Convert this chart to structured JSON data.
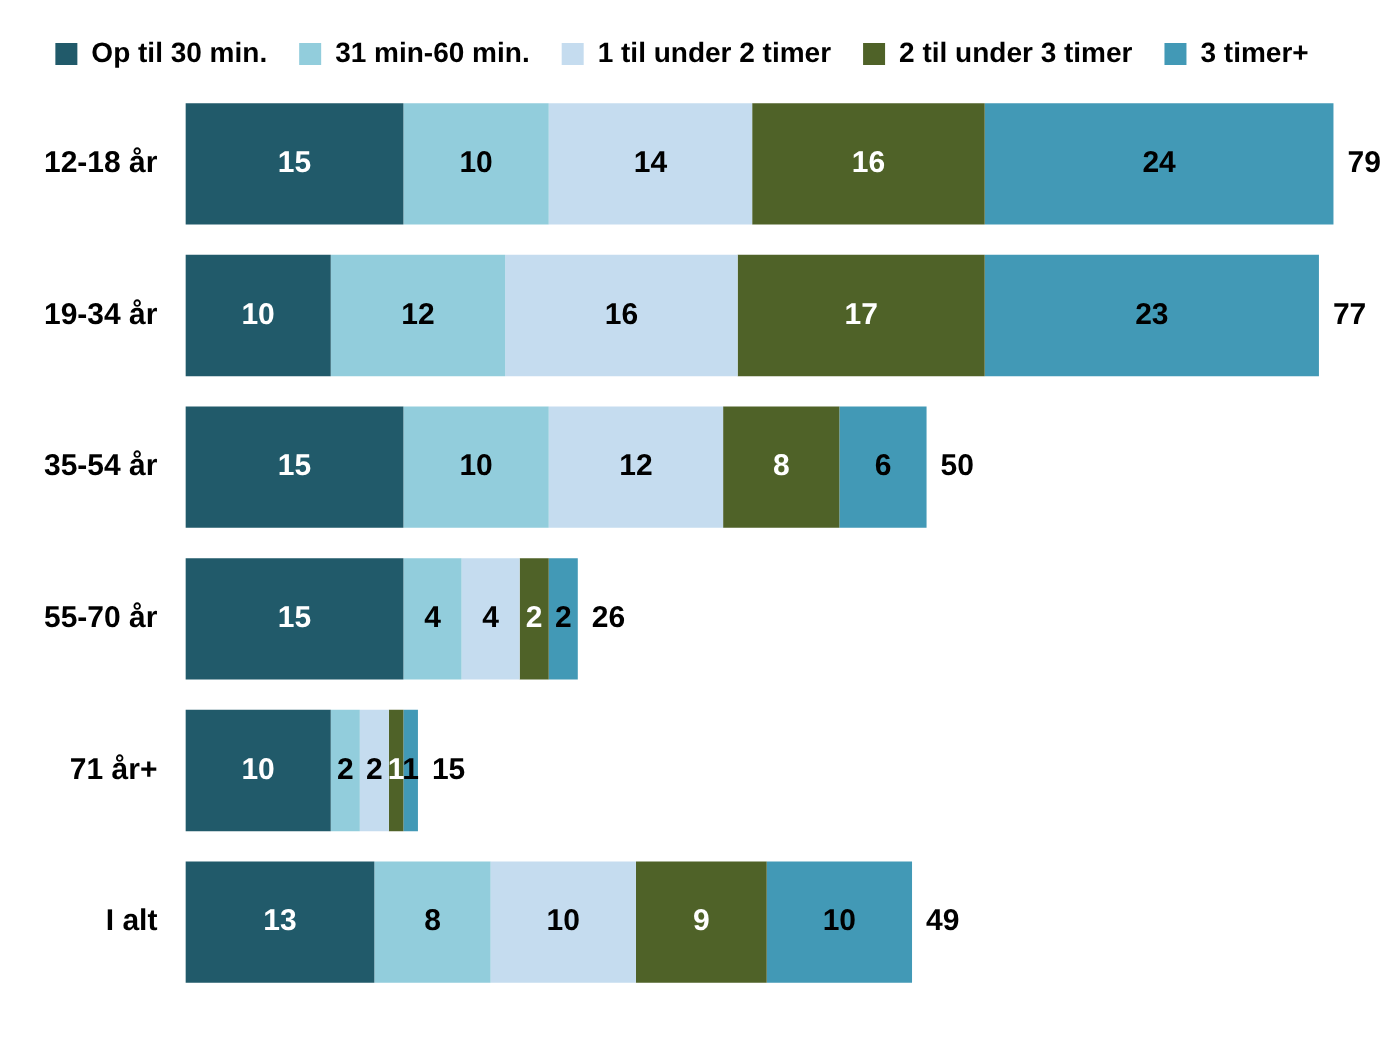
{
  "chart_data": {
    "type": "bar",
    "orientation": "horizontal",
    "stacked": true,
    "categories": [
      "12-18 år",
      "19-34 år",
      "35-54 år",
      "55-70 år",
      "71 år+",
      "I alt"
    ],
    "series": [
      {
        "name": "Op til 30 min.",
        "color": "#215a6a",
        "values": [
          15,
          10,
          15,
          15,
          10,
          13
        ]
      },
      {
        "name": "31 min-60 min.",
        "color": "#92cddc",
        "values": [
          10,
          12,
          10,
          4,
          2,
          8
        ]
      },
      {
        "name": "1 til under 2 timer",
        "color": "#c5dcef",
        "values": [
          14,
          16,
          12,
          4,
          2,
          10
        ]
      },
      {
        "name": "2 til under 3 timer",
        "color": "#4f6228",
        "values": [
          16,
          17,
          8,
          2,
          1,
          9
        ]
      },
      {
        "name": "3 timer+",
        "color": "#4299b6",
        "values": [
          24,
          23,
          6,
          2,
          1,
          10
        ]
      }
    ],
    "data_labels": true,
    "totals": [
      "79",
      "77",
      "50",
      "26",
      "15",
      "49"
    ],
    "legend": "top",
    "grid": false,
    "tick_labels": "y"
  }
}
